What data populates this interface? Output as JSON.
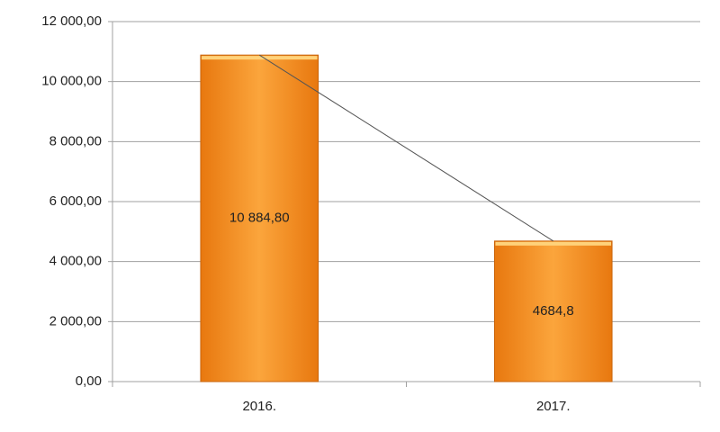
{
  "chart_data": {
    "type": "bar",
    "categories": [
      "2016.",
      "2017."
    ],
    "values": [
      10884.8,
      4684.8
    ],
    "value_labels": [
      "10 884,80",
      "4684,8"
    ],
    "color": "#f7931e",
    "line_color": "#555555",
    "trend_line": true,
    "ylim": [
      0,
      12000
    ],
    "yticks": [
      {
        "value": 0,
        "label": "0,00"
      },
      {
        "value": 2000,
        "label": "2 000,00"
      },
      {
        "value": 4000,
        "label": "4 000,00"
      },
      {
        "value": 6000,
        "label": "6 000,00"
      },
      {
        "value": 8000,
        "label": "8 000,00"
      },
      {
        "value": 10000,
        "label": "10 000,00"
      },
      {
        "value": 12000,
        "label": "12 000,00"
      }
    ],
    "grid": true
  }
}
